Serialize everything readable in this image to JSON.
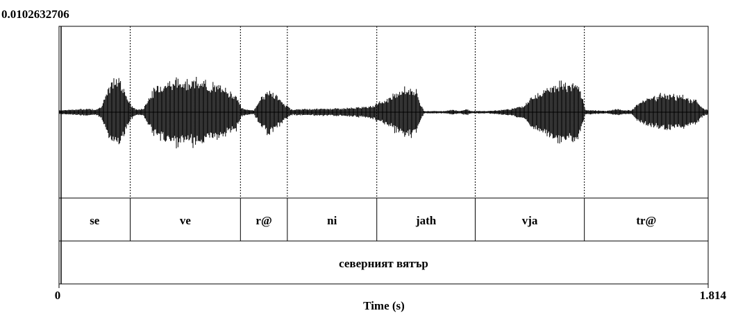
{
  "chart_data": {
    "type": "waveform",
    "amplitude_max_label": "0.0102632706",
    "xlabel": "Time (s)",
    "xlim": [
      0,
      1.814
    ],
    "x_tick_start": "0",
    "x_tick_end": "1.814",
    "syllable_tier": [
      {
        "label": "se",
        "start": 0.0,
        "end": 0.199
      },
      {
        "label": "ve",
        "start": 0.199,
        "end": 0.507
      },
      {
        "label": "r@",
        "start": 0.507,
        "end": 0.638
      },
      {
        "label": "ni",
        "start": 0.638,
        "end": 0.888
      },
      {
        "label": "jath",
        "start": 0.888,
        "end": 1.163
      },
      {
        "label": "vja",
        "start": 1.163,
        "end": 1.468
      },
      {
        "label": "tr@",
        "start": 1.468,
        "end": 1.814
      }
    ],
    "word_tier": [
      {
        "label": "северният вятър",
        "start": 0.0,
        "end": 1.814
      }
    ],
    "envelope": [
      [
        0.0,
        0.05
      ],
      [
        0.02,
        0.06
      ],
      [
        0.05,
        0.07
      ],
      [
        0.08,
        0.09
      ],
      [
        0.1,
        0.07
      ],
      [
        0.115,
        0.12
      ],
      [
        0.13,
        0.4
      ],
      [
        0.15,
        0.8
      ],
      [
        0.17,
        0.85
      ],
      [
        0.185,
        0.55
      ],
      [
        0.199,
        0.2
      ],
      [
        0.215,
        0.07
      ],
      [
        0.235,
        0.08
      ],
      [
        0.255,
        0.45
      ],
      [
        0.28,
        0.7
      ],
      [
        0.32,
        0.8
      ],
      [
        0.37,
        0.82
      ],
      [
        0.42,
        0.72
      ],
      [
        0.46,
        0.6
      ],
      [
        0.495,
        0.45
      ],
      [
        0.51,
        0.1
      ],
      [
        0.53,
        0.06
      ],
      [
        0.545,
        0.05
      ],
      [
        0.565,
        0.4
      ],
      [
        0.59,
        0.55
      ],
      [
        0.61,
        0.4
      ],
      [
        0.63,
        0.2
      ],
      [
        0.65,
        0.07
      ],
      [
        0.7,
        0.08
      ],
      [
        0.75,
        0.09
      ],
      [
        0.8,
        0.1
      ],
      [
        0.84,
        0.12
      ],
      [
        0.88,
        0.18
      ],
      [
        0.92,
        0.35
      ],
      [
        0.95,
        0.55
      ],
      [
        0.98,
        0.62
      ],
      [
        1.0,
        0.5
      ],
      [
        1.01,
        0.22
      ],
      [
        1.02,
        0.03
      ],
      [
        1.08,
        0.03
      ],
      [
        1.1,
        0.06
      ],
      [
        1.12,
        0.03
      ],
      [
        1.14,
        0.08
      ],
      [
        1.15,
        0.03
      ],
      [
        1.2,
        0.03
      ],
      [
        1.26,
        0.08
      ],
      [
        1.3,
        0.18
      ],
      [
        1.33,
        0.45
      ],
      [
        1.36,
        0.62
      ],
      [
        1.39,
        0.75
      ],
      [
        1.42,
        0.72
      ],
      [
        1.45,
        0.7
      ],
      [
        1.46,
        0.45
      ],
      [
        1.47,
        0.06
      ],
      [
        1.53,
        0.03
      ],
      [
        1.56,
        0.08
      ],
      [
        1.575,
        0.05
      ],
      [
        1.6,
        0.05
      ],
      [
        1.62,
        0.25
      ],
      [
        1.66,
        0.4
      ],
      [
        1.7,
        0.45
      ],
      [
        1.74,
        0.4
      ],
      [
        1.78,
        0.3
      ],
      [
        1.8,
        0.1
      ],
      [
        1.814,
        0.05
      ]
    ]
  }
}
